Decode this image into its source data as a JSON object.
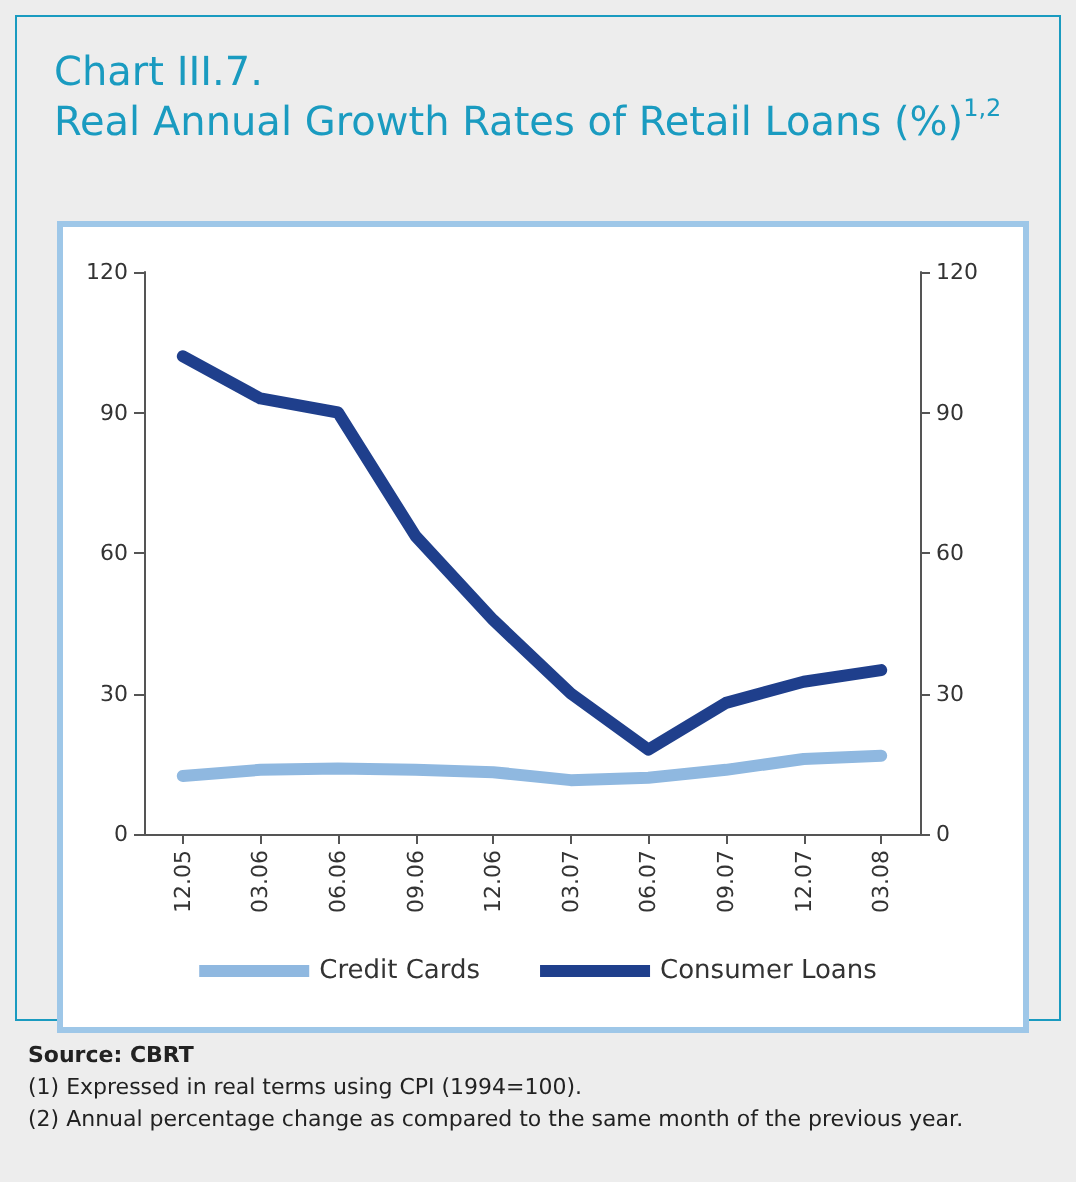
{
  "chart_data": {
    "type": "line",
    "title": "Chart III.7.\nReal Annual Growth Rates of Retail Loans (%)$^{1,2}$",
    "categories": [
      "12.05",
      "03.06",
      "06.06",
      "09.06",
      "12.06",
      "03.07",
      "06.07",
      "09.07",
      "12.07",
      "03.08"
    ],
    "series": [
      {
        "name": "Credit Cards",
        "color": "#8fb8e0",
        "values": [
          12.4,
          13.7,
          14,
          13.7,
          13.2,
          11.5,
          12,
          13.7,
          16,
          16.7
        ]
      },
      {
        "name": "Consumer Loans",
        "color": "#1f3f8c",
        "values": [
          102,
          93,
          90,
          63.6,
          45.7,
          30,
          18,
          28,
          32.5,
          35
        ]
      }
    ],
    "ylim": [
      0,
      120
    ],
    "yticks": [
      0,
      30,
      60,
      90,
      120
    ],
    "y2lim": [
      0,
      120
    ],
    "y2ticks": [
      0,
      30,
      60,
      90,
      120
    ],
    "grid": false,
    "legend": "bottom",
    "marker": "none",
    "line_style": "solid",
    "annotations": [
      "Source: CBRT",
      "(1) Expressed in real terms using CPI (1994=100).",
      "(2) Annual percentage change as compared to the same month of the previous year."
    ]
  }
}
